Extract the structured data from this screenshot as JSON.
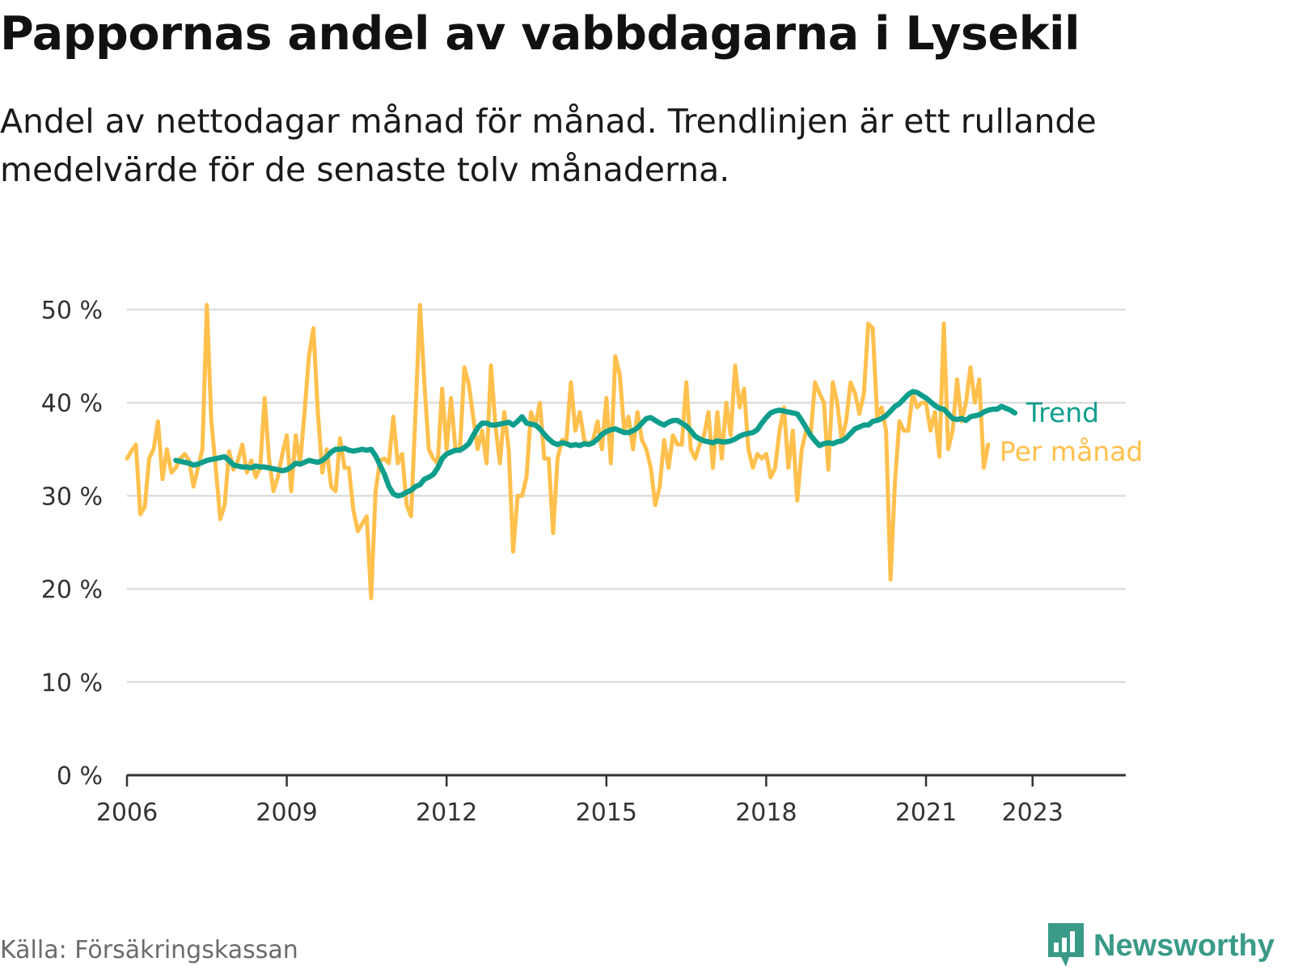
{
  "header": {
    "title": "Pappornas andel av vabbdagarna i Lysekil",
    "subtitle": "Andel av nettodagar månad för månad. Trendlinjen är ett rullande medelvärde för de senaste tolv månaderna."
  },
  "footer": {
    "source": "Källa: Försäkringskassan",
    "brand": "Newsworthy"
  },
  "chart_data": {
    "type": "line",
    "title": "Pappornas andel av vabbdagarna i Lysekil",
    "xlabel": "",
    "ylabel": "",
    "xlim": [
      2006,
      2024.75
    ],
    "ylim": [
      0,
      50
    ],
    "grid": true,
    "legend": "direct labels at line ends (right)",
    "x_ticks": [
      "2006",
      "2009",
      "2012",
      "2015",
      "2018",
      "2021",
      "2023"
    ],
    "y_ticks": [
      "0 %",
      "10 %",
      "20 %",
      "30 %",
      "40 %",
      "50 %"
    ],
    "colors": {
      "trend": "#0f9e8c",
      "monthly": "#ffc04d",
      "grid": "#dddddd",
      "axis": "#333333"
    },
    "series": [
      {
        "name": "Per månad",
        "x_start": 2006.0,
        "step_months": 1,
        "values": [
          34,
          34.8,
          35.5,
          28,
          28.8,
          34,
          35,
          38,
          31.8,
          35,
          32.5,
          33,
          34,
          34.5,
          33.8,
          31,
          33,
          35,
          50.5,
          38,
          33,
          27.5,
          29,
          34.8,
          32.8,
          33.8,
          35.5,
          32.5,
          33.8,
          32,
          33,
          40.5,
          34,
          30.5,
          32,
          34.5,
          36.5,
          30.5,
          36.5,
          33.5,
          39,
          45,
          48,
          39,
          32.5,
          35,
          31,
          30.5,
          36.2,
          33,
          33,
          28.5,
          26.2,
          27,
          27.8,
          19,
          30.5,
          33.8,
          34,
          33.5,
          38.5,
          33.5,
          34.5,
          29,
          27.8,
          39,
          50.5,
          42,
          35,
          34,
          33.5,
          41.5,
          35,
          40.5,
          35,
          35,
          43.8,
          42,
          38.5,
          35,
          37,
          33.5,
          44,
          37.5,
          33.5,
          39,
          35,
          24,
          30,
          30,
          32,
          39,
          37.5,
          40,
          34,
          34,
          26,
          34,
          36,
          36,
          42.2,
          37,
          39,
          36,
          35.5,
          36,
          38,
          35,
          40.5,
          33.5,
          45,
          43,
          37,
          38.5,
          35,
          39,
          36,
          35,
          33,
          29,
          31,
          36,
          33,
          36.5,
          35.5,
          35.5,
          42.2,
          35,
          34,
          35.5,
          36.5,
          39,
          33,
          39,
          34,
          40,
          36.5,
          44,
          39.5,
          41.5,
          35,
          33,
          34.5,
          34,
          34.5,
          32,
          33,
          37,
          39.5,
          33,
          37,
          29.5,
          35,
          37,
          36.5,
          42.2,
          41,
          40,
          32.8,
          42.2,
          40,
          36,
          38,
          42.2,
          41,
          38.8,
          41,
          48.5,
          48,
          38.5,
          39.5,
          37,
          21,
          31.5,
          38,
          37,
          37,
          41,
          39.5,
          40,
          40,
          37,
          39,
          34.2,
          48.5,
          35,
          37,
          42.5,
          38,
          40,
          43.8,
          40,
          42.5,
          33,
          35.5
        ]
      },
      {
        "name": "Trend",
        "x_start": 2006.917,
        "step_months": 1,
        "values": [
          33.8,
          33.7,
          33.6,
          33.5,
          33.3,
          33.4,
          33.6,
          33.8,
          33.9,
          34,
          34.1,
          34.2,
          33.8,
          33.3,
          33.2,
          33.1,
          33.1,
          33,
          33.2,
          33.1,
          33.1,
          33,
          32.9,
          32.8,
          32.7,
          32.8,
          33.1,
          33.5,
          33.4,
          33.6,
          33.8,
          33.7,
          33.6,
          33.8,
          34.2,
          34.7,
          35,
          35,
          35.1,
          34.9,
          34.8,
          34.9,
          35,
          34.9,
          35,
          34.3,
          33.3,
          32.3,
          31,
          30.2,
          30,
          30.1,
          30.4,
          30.6,
          31,
          31.2,
          31.8,
          32,
          32.3,
          33,
          34,
          34.5,
          34.7,
          34.9,
          34.9,
          35.2,
          35.6,
          36.5,
          37.3,
          37.8,
          37.8,
          37.6,
          37.6,
          37.7,
          37.8,
          37.9,
          37.6,
          38,
          38.5,
          37.8,
          37.7,
          37.6,
          37.2,
          36.6,
          36.1,
          35.7,
          35.5,
          35.7,
          35.6,
          35.4,
          35.5,
          35.4,
          35.6,
          35.5,
          35.7,
          36.1,
          36.6,
          36.9,
          37.1,
          37.2,
          37,
          36.8,
          36.8,
          37,
          37.3,
          37.8,
          38.3,
          38.4,
          38.1,
          37.8,
          37.6,
          37.9,
          38.1,
          38.1,
          37.8,
          37.5,
          37,
          36.4,
          36.1,
          35.9,
          35.8,
          35.7,
          35.9,
          35.8,
          35.8,
          35.9,
          36.1,
          36.4,
          36.6,
          36.7,
          36.8,
          37.1,
          37.8,
          38.4,
          38.9,
          39.1,
          39.2,
          39.1,
          39,
          38.9,
          38.8,
          38.1,
          37.3,
          36.5,
          35.9,
          35.4,
          35.6,
          35.7,
          35.6,
          35.8,
          35.9,
          36.2,
          36.7,
          37.2,
          37.4,
          37.6,
          37.6,
          38,
          38.1,
          38.3,
          38.6,
          39.1,
          39.6,
          39.9,
          40.4,
          40.9,
          41.2,
          41.1,
          40.8,
          40.5,
          40.1,
          39.7,
          39.4,
          39.3,
          38.8,
          38.3,
          38.2,
          38.3,
          38.1,
          38.5,
          38.6,
          38.7,
          39,
          39.2,
          39.3,
          39.3,
          39.6,
          39.4,
          39.2,
          38.9
        ]
      }
    ]
  }
}
